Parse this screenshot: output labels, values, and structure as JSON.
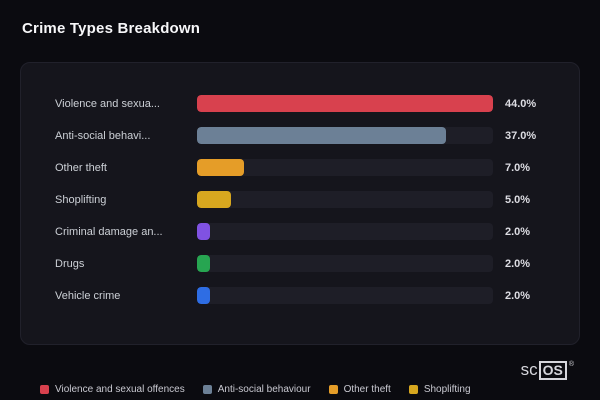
{
  "page": {
    "title": "Crime Types Breakdown",
    "brand": {
      "prefix": "sc",
      "boxed": "OS",
      "reg": "®"
    }
  },
  "chart_data": {
    "type": "bar",
    "orientation": "horizontal",
    "title": "Crime Types Breakdown",
    "categories": [
      "Violence and sexua...",
      "Anti-social behavi...",
      "Other theft",
      "Shoplifting",
      "Criminal damage an...",
      "Drugs",
      "Vehicle crime"
    ],
    "values": [
      44.0,
      37.0,
      7.0,
      5.0,
      2.0,
      2.0,
      2.0
    ],
    "value_labels": [
      "44.0%",
      "37.0%",
      "7.0%",
      "5.0%",
      "2.0%",
      "2.0%",
      "2.0%"
    ],
    "bar_colors": [
      "#d8414e",
      "#6c8096",
      "#e59d28",
      "#d7a71f",
      "#8052e2",
      "#27a551",
      "#2e6de4"
    ],
    "track_color": "#1e1e27",
    "max_value": 44.0,
    "xlim": [
      0,
      44
    ],
    "grid": false,
    "legend_position": "bottom",
    "legend": [
      {
        "label": "Violence and sexual offences",
        "color": "#d8414e"
      },
      {
        "label": "Anti-social behaviour",
        "color": "#6c8096"
      },
      {
        "label": "Other theft",
        "color": "#e59d28"
      },
      {
        "label": "Shoplifting",
        "color": "#d7a71f"
      }
    ]
  }
}
